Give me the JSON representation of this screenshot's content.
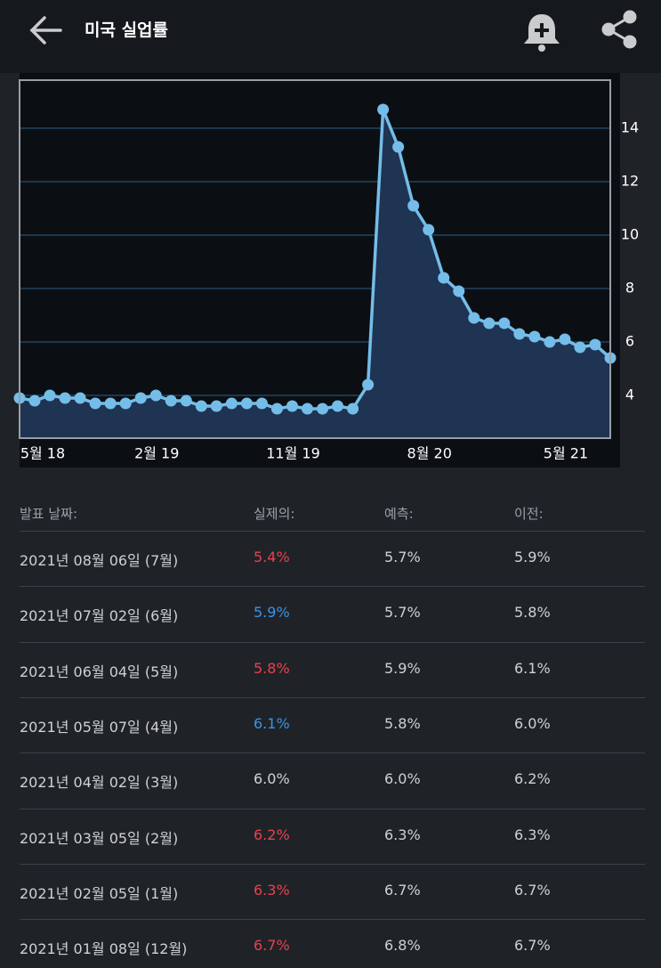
{
  "header": {
    "title": "미국 실업률"
  },
  "chart_data": {
    "type": "line",
    "categories": [
      null,
      "5월 18",
      null,
      null,
      null,
      null,
      null,
      null,
      null,
      null,
      "2월 19",
      null,
      null,
      null,
      null,
      null,
      null,
      null,
      null,
      "11월 19",
      null,
      null,
      null,
      null,
      null,
      null,
      null,
      null,
      "8월 20",
      null,
      null,
      null,
      null,
      null,
      null,
      null,
      null,
      "5월 21",
      null,
      null
    ],
    "values": [
      3.9,
      3.8,
      4.0,
      3.9,
      3.9,
      3.7,
      3.7,
      3.7,
      3.9,
      4.0,
      3.8,
      3.8,
      3.6,
      3.6,
      3.7,
      3.7,
      3.7,
      3.5,
      3.6,
      3.5,
      3.5,
      3.6,
      3.5,
      4.4,
      14.7,
      13.3,
      11.1,
      10.2,
      8.4,
      7.9,
      6.9,
      6.7,
      6.7,
      6.3,
      6.2,
      6.0,
      6.1,
      5.8,
      5.9,
      5.4
    ],
    "color": "#74bde8",
    "area_color": "#1f3352",
    "ylim": [
      2.4,
      15.8
    ],
    "yticks": [
      4,
      6,
      8,
      10,
      12,
      14
    ],
    "grid": true
  },
  "table": {
    "columns": [
      "발표 날짜:",
      "실제의:",
      "예측:",
      "이전:"
    ],
    "rows": [
      {
        "cells": [
          "2021년 08월 06일 (7월)",
          "5.4%",
          "5.7%",
          "5.9%"
        ],
        "actual_color": "#e9414b"
      },
      {
        "cells": [
          "2021년 07월 02일 (6월)",
          "5.9%",
          "5.7%",
          "5.8%"
        ],
        "actual_color": "#3b93e6"
      },
      {
        "cells": [
          "2021년 06월 04일 (5월)",
          "5.8%",
          "5.9%",
          "6.1%"
        ],
        "actual_color": "#e9414b"
      },
      {
        "cells": [
          "2021년 05월 07일 (4월)",
          "6.1%",
          "5.8%",
          "6.0%"
        ],
        "actual_color": "#3b93e6"
      },
      {
        "cells": [
          "2021년 04월 02일 (3월)",
          "6.0%",
          "6.0%",
          "6.2%"
        ],
        "actual_color": "#d2d4d6"
      },
      {
        "cells": [
          "2021년 03월 05일 (2월)",
          "6.2%",
          "6.3%",
          "6.3%"
        ],
        "actual_color": "#e9414b"
      },
      {
        "cells": [
          "2021년 02월 05일 (1월)",
          "6.3%",
          "6.7%",
          "6.7%"
        ],
        "actual_color": "#e9414b"
      },
      {
        "cells": [
          "2021년 01월 08일 (12월)",
          "6.7%",
          "6.8%",
          "6.7%"
        ],
        "actual_color": "#e9414b"
      }
    ]
  }
}
